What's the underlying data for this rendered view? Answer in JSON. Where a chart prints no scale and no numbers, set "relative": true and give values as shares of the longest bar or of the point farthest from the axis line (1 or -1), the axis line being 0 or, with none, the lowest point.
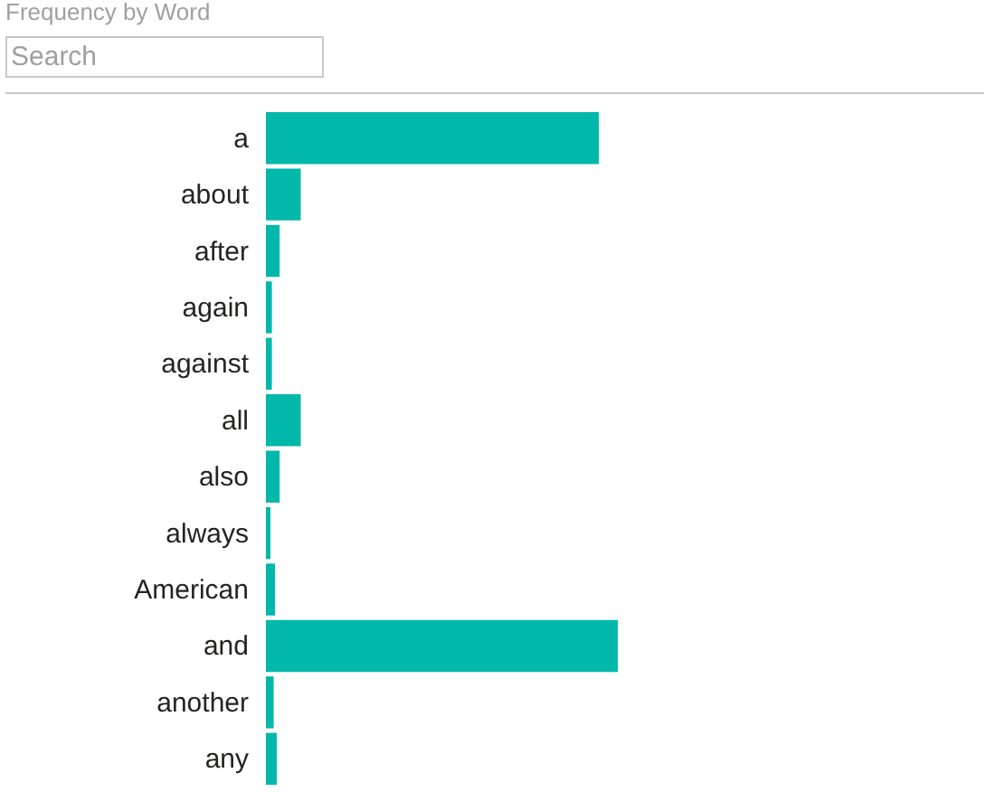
{
  "chart_data": {
    "type": "bar",
    "title": "Frequency by Word",
    "annotations": [
      "Search"
    ],
    "orientation": "horizontal",
    "relative": true,
    "color": "#01b8aa",
    "categories": [
      "a",
      "about",
      "after",
      "again",
      "against",
      "all",
      "also",
      "always",
      "American",
      "and",
      "another",
      "any"
    ],
    "values": [
      0.946,
      0.099,
      0.039,
      0.017,
      0.017,
      0.099,
      0.039,
      0.013,
      0.026,
      1,
      0.022,
      0.031
    ]
  }
}
